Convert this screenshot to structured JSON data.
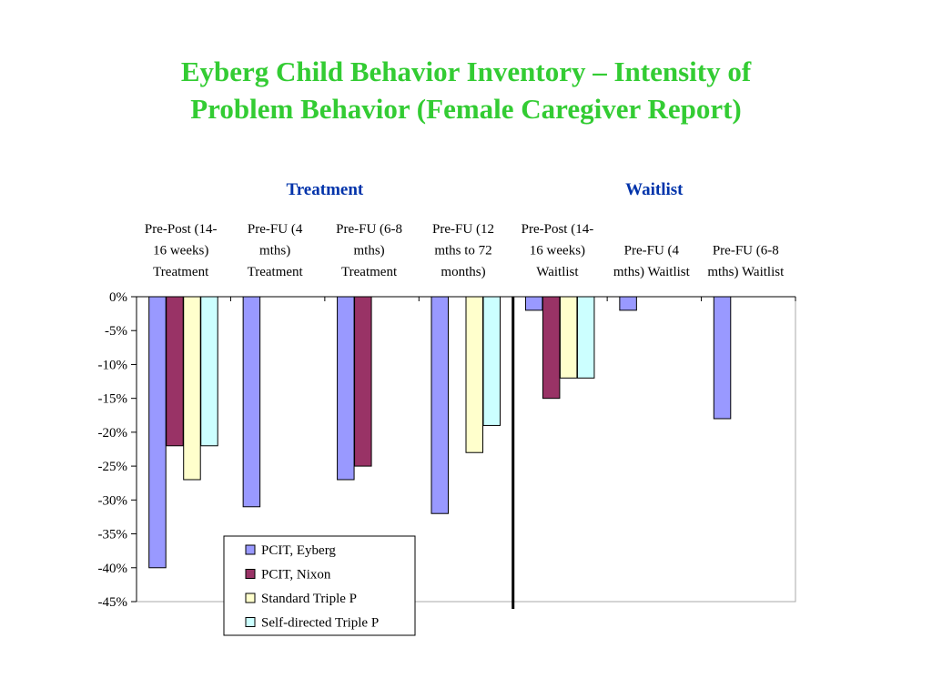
{
  "title": {
    "line1": "Eyberg Child Behavior Inventory – Intensity of",
    "line2": "Problem Behavior (Female Caregiver Report)"
  },
  "colors": {
    "title": "#33cc33",
    "group_heading": "#0033aa",
    "series": [
      "#9999ff",
      "#993366",
      "#ffffcc",
      "#ccffff"
    ],
    "bar_outline": "#000000"
  },
  "chart_data": {
    "type": "bar",
    "group_headings": [
      {
        "label": "Treatment",
        "categories": [
          0,
          1,
          2,
          3
        ]
      },
      {
        "label": "Waitlist",
        "categories": [
          4,
          5,
          6
        ]
      }
    ],
    "categories": [
      [
        "Pre-Post (14-",
        "16 weeks)",
        "Treatment"
      ],
      [
        "Pre-FU (4",
        "mths)",
        "Treatment"
      ],
      [
        "Pre-FU (6-8",
        "mths)",
        "Treatment"
      ],
      [
        "Pre-FU (12",
        "mths to 72",
        "months)"
      ],
      [
        "Pre-Post (14-",
        "16 weeks)",
        "Waitlist"
      ],
      [
        "",
        "Pre-FU (4",
        "mths) Waitlist"
      ],
      [
        "",
        "Pre-FU (6-8",
        "mths) Waitlist"
      ]
    ],
    "series": [
      {
        "name": "PCIT, Eyberg",
        "values": [
          -40,
          -31,
          -27,
          -32,
          -2,
          -2,
          -18
        ]
      },
      {
        "name": "PCIT, Nixon",
        "values": [
          -22,
          null,
          -25,
          null,
          -15,
          null,
          null
        ]
      },
      {
        "name": "Standard Triple P",
        "values": [
          -27,
          null,
          null,
          -23,
          -12,
          null,
          null
        ]
      },
      {
        "name": "Self-directed Triple P",
        "values": [
          -22,
          null,
          null,
          -19,
          -12,
          null,
          null
        ]
      }
    ],
    "ylim": [
      -45,
      0
    ],
    "ytick_step": 5,
    "ytick_labels": [
      "0%",
      "-5%",
      "-10%",
      "-15%",
      "-20%",
      "-25%",
      "-30%",
      "-35%",
      "-40%",
      "-45%"
    ],
    "separator_after_category": 3,
    "legend_position": "bottom-left, inside plot",
    "grid": false
  }
}
